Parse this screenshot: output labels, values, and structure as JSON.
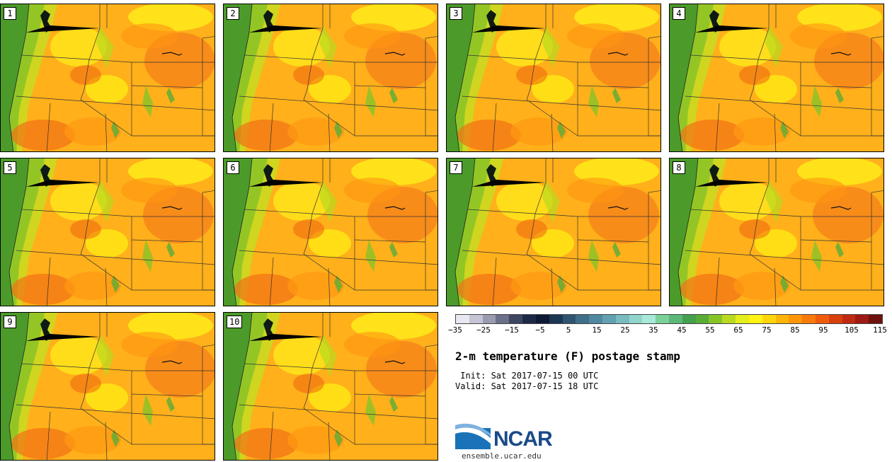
{
  "panels": [
    {
      "label": "1"
    },
    {
      "label": "2"
    },
    {
      "label": "3"
    },
    {
      "label": "4"
    },
    {
      "label": "5"
    },
    {
      "label": "6"
    },
    {
      "label": "7"
    },
    {
      "label": "8"
    },
    {
      "label": "9"
    },
    {
      "label": "10"
    }
  ],
  "colorbar": {
    "colors": [
      "#e8e8f0",
      "#c4c4d4",
      "#9a9ab0",
      "#6c7088",
      "#3e4660",
      "#1c2a48",
      "#0e1a34",
      "#1c3654",
      "#2e5470",
      "#3f6f88",
      "#4f88a0",
      "#63a0b0",
      "#79bcc0",
      "#90d4cc",
      "#a8e8d8",
      "#7cd09a",
      "#5cb878",
      "#45a04e",
      "#5aac38",
      "#86c428",
      "#b8da20",
      "#e4ee1c",
      "#fff214",
      "#ffd60c",
      "#ffb40a",
      "#ff9608",
      "#f87a0a",
      "#ee5c0c",
      "#d8400e",
      "#c02a10",
      "#9e1a12",
      "#6e120e"
    ],
    "ticks": [
      "−35",
      "−25",
      "−15",
      "−5",
      "5",
      "15",
      "25",
      "35",
      "45",
      "55",
      "65",
      "75",
      "85",
      "95",
      "105",
      "115"
    ]
  },
  "title": "2-m temperature (F) postage stamp",
  "init": " Init: Sat 2017-07-15 00 UTC",
  "valid": "Valid: Sat 2017-07-15 18 UTC",
  "logo_text": "NCAR",
  "url": "ensemble.ucar.edu"
}
